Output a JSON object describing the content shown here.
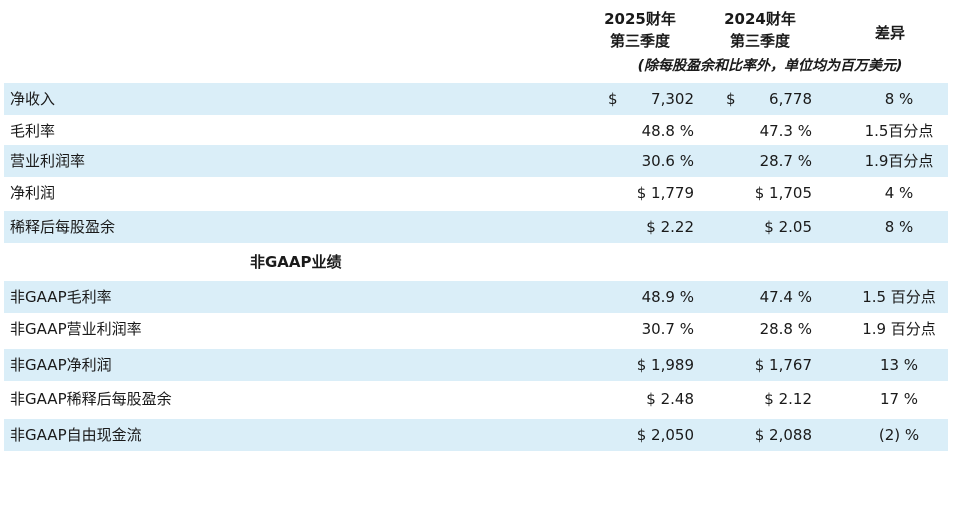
{
  "header": {
    "col1": [
      "2025财年",
      "第三季度"
    ],
    "col2": [
      "2024财年",
      "第三季度"
    ],
    "col3": "差异",
    "units": "(除每股盈余和比率外，单位均为百万美元)"
  },
  "gaap_rows": [
    {
      "label": "净收入",
      "c1_symbol": "$",
      "c1": "7,302",
      "c2_symbol": "$",
      "c2": "6,778",
      "diff": "8 %"
    },
    {
      "label": "毛利率",
      "c1": "48.8 %",
      "c2": "47.3 %",
      "diff": "1.5百分点"
    },
    {
      "label": "营业利润率",
      "c1": "30.6 %",
      "c2": "28.7 %",
      "diff": "1.9百分点"
    },
    {
      "label": "净利润",
      "c1": "$ 1,779",
      "c2": "$ 1,705",
      "diff": "4 %"
    },
    {
      "label": "稀释后每股盈余",
      "c1": "$ 2.22",
      "c2": "$ 2.05",
      "diff": "8 %"
    }
  ],
  "section_title": "非GAAP业绩",
  "non_gaap_rows": [
    {
      "label": "非GAAP毛利率",
      "c1": "48.9 %",
      "c2": "47.4 %",
      "diff": "1.5 百分点"
    },
    {
      "label": "非GAAP营业利润率",
      "c1": "30.7 %",
      "c2": "28.8 %",
      "diff": "1.9 百分点"
    },
    {
      "label": "非GAAP净利润",
      "c1": "$ 1,989",
      "c2": "$ 1,767",
      "diff": "13 %"
    },
    {
      "label": "非GAAP稀释后每股盈余",
      "c1": "$ 2.48",
      "c2": "$ 2.12",
      "diff": "17 %"
    },
    {
      "label": "非GAAP自由现金流",
      "c1": "$ 2,050",
      "c2": "$ 2,088",
      "diff": "(2) %"
    }
  ],
  "colors": {
    "row_shade": "#daeef8",
    "text": "#1a1a1a"
  }
}
